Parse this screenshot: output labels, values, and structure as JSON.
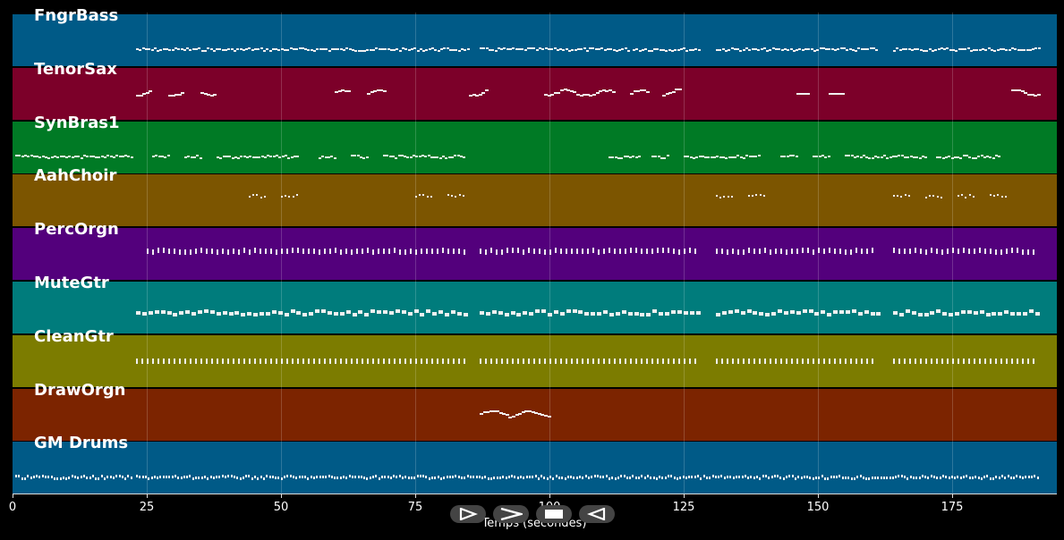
{
  "tracks": [
    {
      "name": "FngrBass",
      "color": "#005a87",
      "pattern": "dense",
      "segments": [
        [
          23,
          85
        ],
        [
          87,
          115
        ],
        [
          115.5,
          128
        ],
        [
          131,
          161
        ],
        [
          164,
          191
        ]
      ]
    },
    {
      "name": "TenorSax",
      "color": "#7c0029",
      "pattern": "melody",
      "segments": [
        [
          23,
          26
        ],
        [
          29,
          32
        ],
        [
          35,
          38
        ],
        [
          60,
          63
        ],
        [
          66,
          69
        ],
        [
          85,
          88
        ],
        [
          99,
          112
        ],
        [
          115,
          118
        ],
        [
          121,
          124
        ],
        [
          146,
          148.5
        ],
        [
          152,
          155
        ],
        [
          186,
          191
        ]
      ]
    },
    {
      "name": "SynBras1",
      "color": "#007a25",
      "pattern": "dense",
      "segments": [
        [
          0.5,
          22
        ],
        [
          26,
          29
        ],
        [
          32,
          35
        ],
        [
          38,
          53
        ],
        [
          57,
          60
        ],
        [
          63,
          66
        ],
        [
          69,
          84
        ],
        [
          111,
          117
        ],
        [
          119,
          122
        ],
        [
          125,
          139
        ],
        [
          143,
          146
        ],
        [
          149,
          152
        ],
        [
          155,
          170
        ],
        [
          172,
          184
        ]
      ]
    },
    {
      "name": "AahChoir",
      "color": "#7c5500",
      "pattern": "sparse",
      "segments": [
        [
          44,
          47
        ],
        [
          50,
          53
        ],
        [
          75,
          78
        ],
        [
          81,
          84
        ],
        [
          131,
          134
        ],
        [
          137,
          140
        ],
        [
          164,
          167
        ],
        [
          170,
          173
        ],
        [
          176,
          179
        ],
        [
          182,
          185
        ]
      ]
    },
    {
      "name": "PercOrgn",
      "color": "#53007c",
      "pattern": "hits",
      "segments": [
        [
          25,
          85
        ],
        [
          87,
          128
        ],
        [
          131,
          161
        ],
        [
          164,
          191
        ]
      ]
    },
    {
      "name": "MuteGtr",
      "color": "#007c7c",
      "pattern": "blocks",
      "segments": [
        [
          23,
          85
        ],
        [
          87,
          128
        ],
        [
          131,
          161
        ],
        [
          164,
          191
        ]
      ]
    },
    {
      "name": "CleanGtr",
      "color": "#7c7c00",
      "pattern": "hits",
      "segments": [
        [
          23,
          85
        ],
        [
          87,
          128
        ],
        [
          131,
          161
        ],
        [
          164,
          191
        ]
      ]
    },
    {
      "name": "DrawOrgn",
      "color": "#7c2400",
      "pattern": "melody",
      "segments": [
        [
          87,
          100
        ]
      ]
    },
    {
      "name": "GM Drums",
      "color": "#005a87",
      "pattern": "drums",
      "segments": [
        [
          0.5,
          22
        ],
        [
          23,
          191
        ]
      ]
    }
  ],
  "chart_data": {
    "type": "table",
    "xlabel": "Temps (secondes)",
    "xlim": [
      0,
      194
    ],
    "xticks": [
      0,
      25,
      50,
      75,
      100,
      125,
      150,
      175
    ],
    "xtick_labels": [
      "0",
      "25",
      "50",
      "75",
      "100",
      "125",
      "150",
      "175"
    ],
    "series_names": [
      "FngrBass",
      "TenorSax",
      "SynBras1",
      "AahChoir",
      "PercOrgn",
      "MuteGtr",
      "CleanGtr",
      "DrawOrgn",
      "GM Drums"
    ]
  },
  "controls": [
    {
      "name": "play-icon"
    },
    {
      "name": "forward-icon"
    },
    {
      "name": "stop-icon"
    },
    {
      "name": "back-icon"
    }
  ]
}
